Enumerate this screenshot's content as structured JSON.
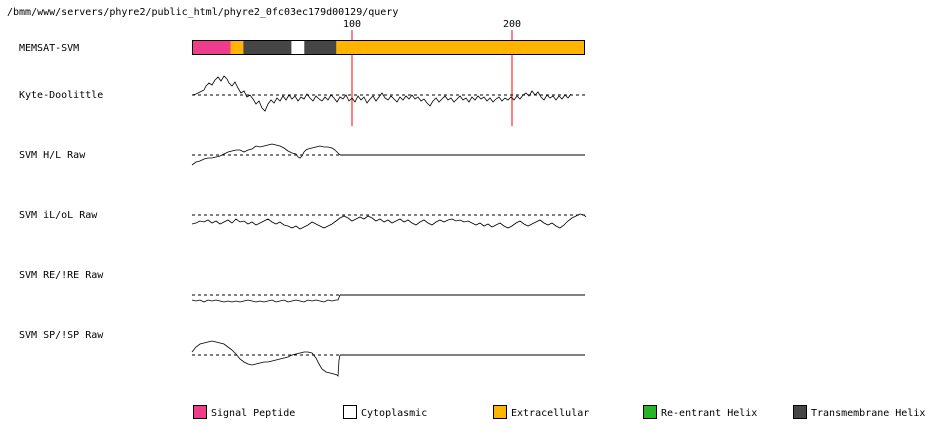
{
  "header": {
    "path": "/bmm/www/servers/phyre2/public_html/phyre2_0fc03ec179d00129/query"
  },
  "ticks": [
    {
      "label": "100",
      "residue": 100
    },
    {
      "label": "200",
      "residue": 200
    }
  ],
  "sequence_length": 245,
  "tracks": [
    {
      "id": "memsat",
      "label": "MEMSAT-SVM"
    },
    {
      "id": "kd",
      "label": "Kyte-Doolittle"
    },
    {
      "id": "hl",
      "label": "SVM H/L Raw"
    },
    {
      "id": "iloL",
      "label": "SVM iL/oL Raw"
    },
    {
      "id": "re",
      "label": "SVM RE/!RE Raw"
    },
    {
      "id": "sp",
      "label": "SVM SP/!SP Raw"
    }
  ],
  "memsat_segments": [
    {
      "type": "signal_peptide",
      "start": 1,
      "end": 24
    },
    {
      "type": "extracellular",
      "start": 25,
      "end": 32
    },
    {
      "type": "transmembrane",
      "start": 33,
      "end": 62
    },
    {
      "type": "cytoplasmic",
      "start": 63,
      "end": 70
    },
    {
      "type": "transmembrane",
      "start": 71,
      "end": 90
    },
    {
      "type": "extracellular",
      "start": 91,
      "end": 245
    }
  ],
  "legend": [
    {
      "type": "signal_peptide",
      "label": "Signal Peptide",
      "color": "#f03c8c"
    },
    {
      "type": "cytoplasmic",
      "label": "Cytoplasmic",
      "color": "#ffffff"
    },
    {
      "type": "extracellular",
      "label": "Extracellular",
      "color": "#ffb400"
    },
    {
      "type": "reentrant",
      "label": "Re-entrant Helix",
      "color": "#28b428"
    },
    {
      "type": "transmembrane",
      "label": "Transmembrane Helix",
      "color": "#464646"
    }
  ]
}
